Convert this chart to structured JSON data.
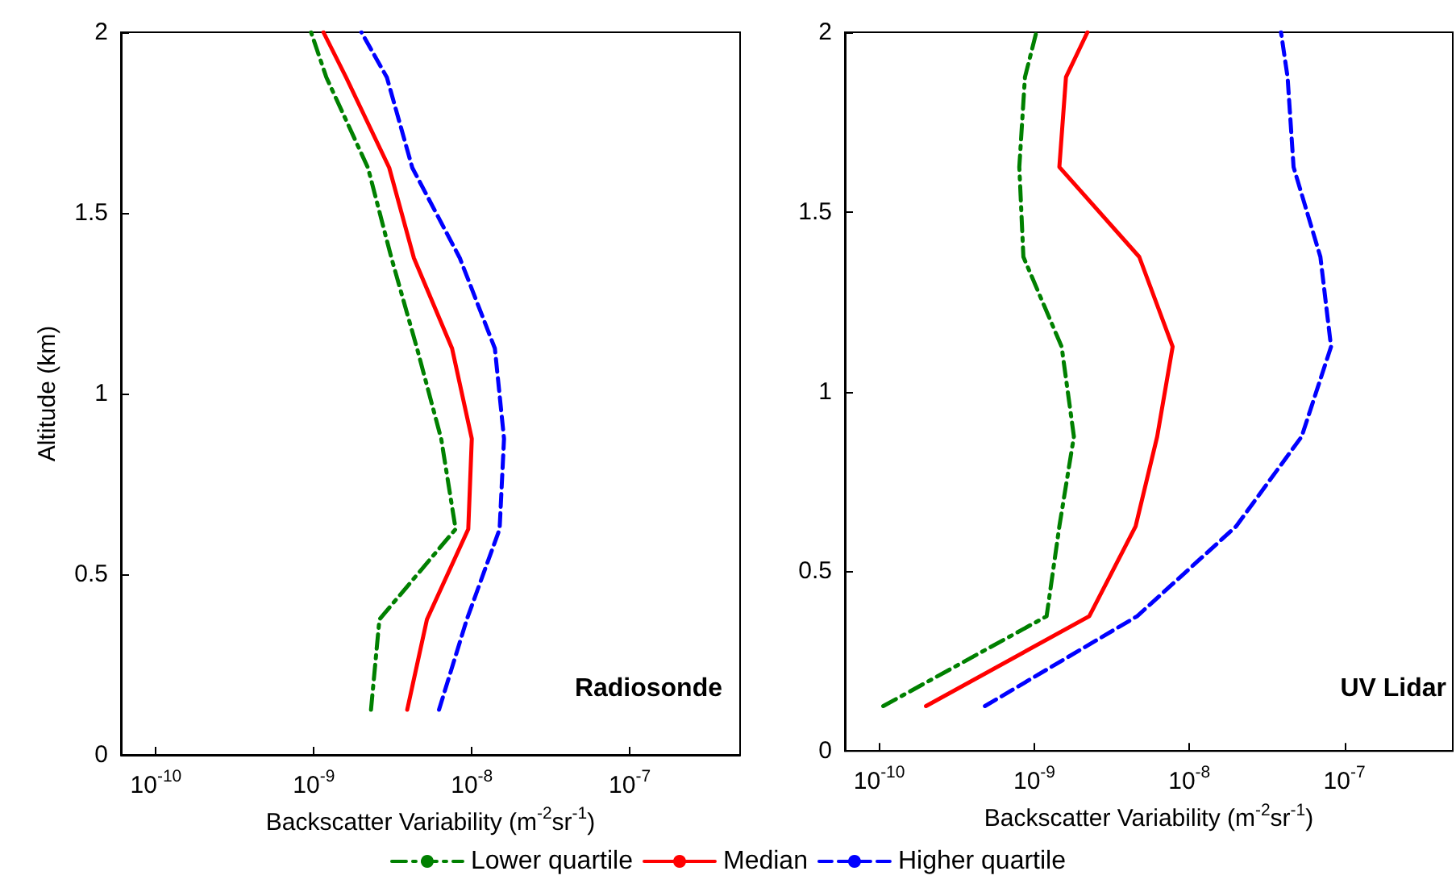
{
  "chart_data": [
    {
      "type": "line",
      "orientation": "horizontal",
      "log": "x",
      "annotations": [
        "Radiosonde"
      ],
      "xlabel": "Backscatter Variability (m$^{-2}$sr$^{-1}$)",
      "ylabel": "Altitude (km)",
      "xlim": [
        6e-11,
        5e-07
      ],
      "xticks": [
        {
          "value": 1e-10,
          "label": "10$^{-10}$"
        },
        {
          "value": 1e-09,
          "label": "10$^{-9}$"
        },
        {
          "value": 1e-08,
          "label": "10$^{-8}$"
        },
        {
          "value": 1e-07,
          "label": "10$^{-7}$"
        }
      ],
      "ylim": [
        0,
        2
      ],
      "yticks": [
        0,
        0.5,
        1,
        1.5,
        2
      ],
      "grid": false,
      "legend": "bottom",
      "x": [
        0.125,
        0.375,
        0.625,
        0.875,
        1.125,
        1.375,
        1.625,
        1.875,
        2.0
      ],
      "series": [
        {
          "name": "Lower quartile",
          "color": "#008000",
          "line_style": "dashdot",
          "values": [
            2.3e-09,
            2.6e-09,
            7.9e-09,
            6.4e-09,
            4.5e-09,
            3.1e-09,
            2.2e-09,
            1.2e-09,
            9.6e-10
          ]
        },
        {
          "name": "Median",
          "color": "#ff0000",
          "line_style": "solid",
          "values": [
            3.9e-09,
            5.2e-09,
            9.5e-09,
            1e-08,
            7.5e-09,
            4.3e-09,
            3e-09,
            1.6e-09,
            1.15e-09
          ]
        },
        {
          "name": "Higher quartile",
          "color": "#0000ff",
          "line_style": "dashed",
          "values": [
            6.2e-09,
            9.3e-09,
            1.5e-08,
            1.6e-08,
            1.4e-08,
            8.4e-09,
            4.2e-09,
            2.9e-09,
            2e-09
          ]
        }
      ]
    },
    {
      "type": "line",
      "orientation": "horizontal",
      "log": "x",
      "annotations": [
        "UV Lidar"
      ],
      "xlabel": "Backscatter Variability (m$^{-2}$sr$^{-1}$)",
      "xlim": [
        6e-11,
        5e-07
      ],
      "xticks": [
        {
          "value": 1e-10,
          "label": "10$^{-10}$"
        },
        {
          "value": 1e-09,
          "label": "10$^{-9}$"
        },
        {
          "value": 1e-08,
          "label": "10$^{-8}$"
        },
        {
          "value": 1e-07,
          "label": "10$^{-7}$"
        }
      ],
      "ylim": [
        0,
        2
      ],
      "yticks": [
        0,
        0.5,
        1,
        1.5,
        2
      ],
      "grid": false,
      "x": [
        0.125,
        0.375,
        0.625,
        0.875,
        1.125,
        1.375,
        1.625,
        1.875,
        2.0
      ],
      "series": [
        {
          "color": "#008000",
          "line_style": "dashdot",
          "values": [
            1.06e-10,
            1.2e-09,
            1.45e-09,
            1.8e-09,
            1.5e-09,
            8.5e-10,
            8e-10,
            8.7e-10,
            1.03e-09
          ]
        },
        {
          "color": "#ff0000",
          "line_style": "solid",
          "values": [
            2e-10,
            2.26e-09,
            4.5e-09,
            6.2e-09,
            7.8e-09,
            4.75e-09,
            1.45e-09,
            1.6e-09,
            2.2e-09
          ]
        },
        {
          "color": "#0000ff",
          "line_style": "dashed",
          "values": [
            4.8e-10,
            4.6e-09,
            2e-08,
            5.3e-08,
            8.2e-08,
            7e-08,
            4.7e-08,
            4.3e-08,
            3.9e-08
          ]
        }
      ]
    }
  ]
}
